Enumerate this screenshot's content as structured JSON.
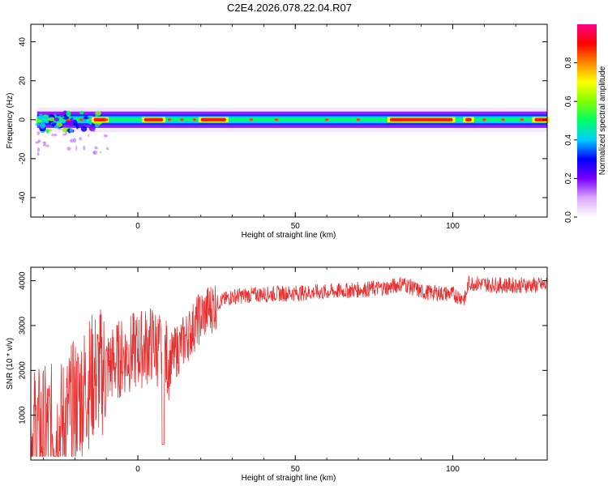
{
  "page": {
    "title": "C2E4.2026.078.22.04.R07"
  },
  "chart_data": [
    {
      "type": "heatmap",
      "xlabel": "Height of straight line (km)",
      "ylabel": "Frequency (Hz)",
      "xlim": [
        -34,
        130
      ],
      "ylim": [
        -50,
        49
      ],
      "xticks": [
        0,
        50,
        100
      ],
      "yticks": [
        -40,
        -20,
        0,
        20,
        40
      ],
      "colorbar": {
        "label": "Normalized spectral amplitude",
        "range": [
          0,
          1
        ],
        "ticks": [
          "0.0",
          "0.2",
          "0.4",
          "0.6",
          "0.8"
        ],
        "colormap": [
          "#ffffff",
          "#d9a6ff",
          "#7b00ff",
          "#0000ff",
          "#00ccff",
          "#00ff66",
          "#7fff00",
          "#ffff00",
          "#ff8800",
          "#ff0000",
          "#ff0088"
        ]
      },
      "band": {
        "center_frequency_hz": 0,
        "half_width_hz": 3,
        "hot_segments_km": [
          [
            -14,
            -10
          ],
          [
            2,
            8
          ],
          [
            20,
            28
          ],
          [
            80,
            100
          ],
          [
            104,
            106
          ],
          [
            126,
            130
          ]
        ]
      }
    },
    {
      "type": "line",
      "xlabel": "Height of straight line (km)",
      "ylabel": "SNR (10 * v/v)",
      "xlim": [
        -34,
        130
      ],
      "ylim": [
        0,
        4300
      ],
      "xticks": [
        0,
        50,
        100
      ],
      "yticks": [
        1000,
        2000,
        3000,
        4000
      ],
      "color": "#e83030",
      "trend": {
        "x": [
          -34,
          -25,
          -15,
          -5,
          5,
          10,
          15,
          20,
          25,
          30,
          40,
          60,
          80,
          84,
          90,
          100,
          104,
          105,
          115,
          130
        ],
        "y": [
          600,
          700,
          1800,
          2300,
          2600,
          2200,
          2700,
          3200,
          3500,
          3650,
          3700,
          3750,
          3850,
          3950,
          3750,
          3700,
          3600,
          3950,
          3900,
          3900
        ]
      }
    }
  ]
}
